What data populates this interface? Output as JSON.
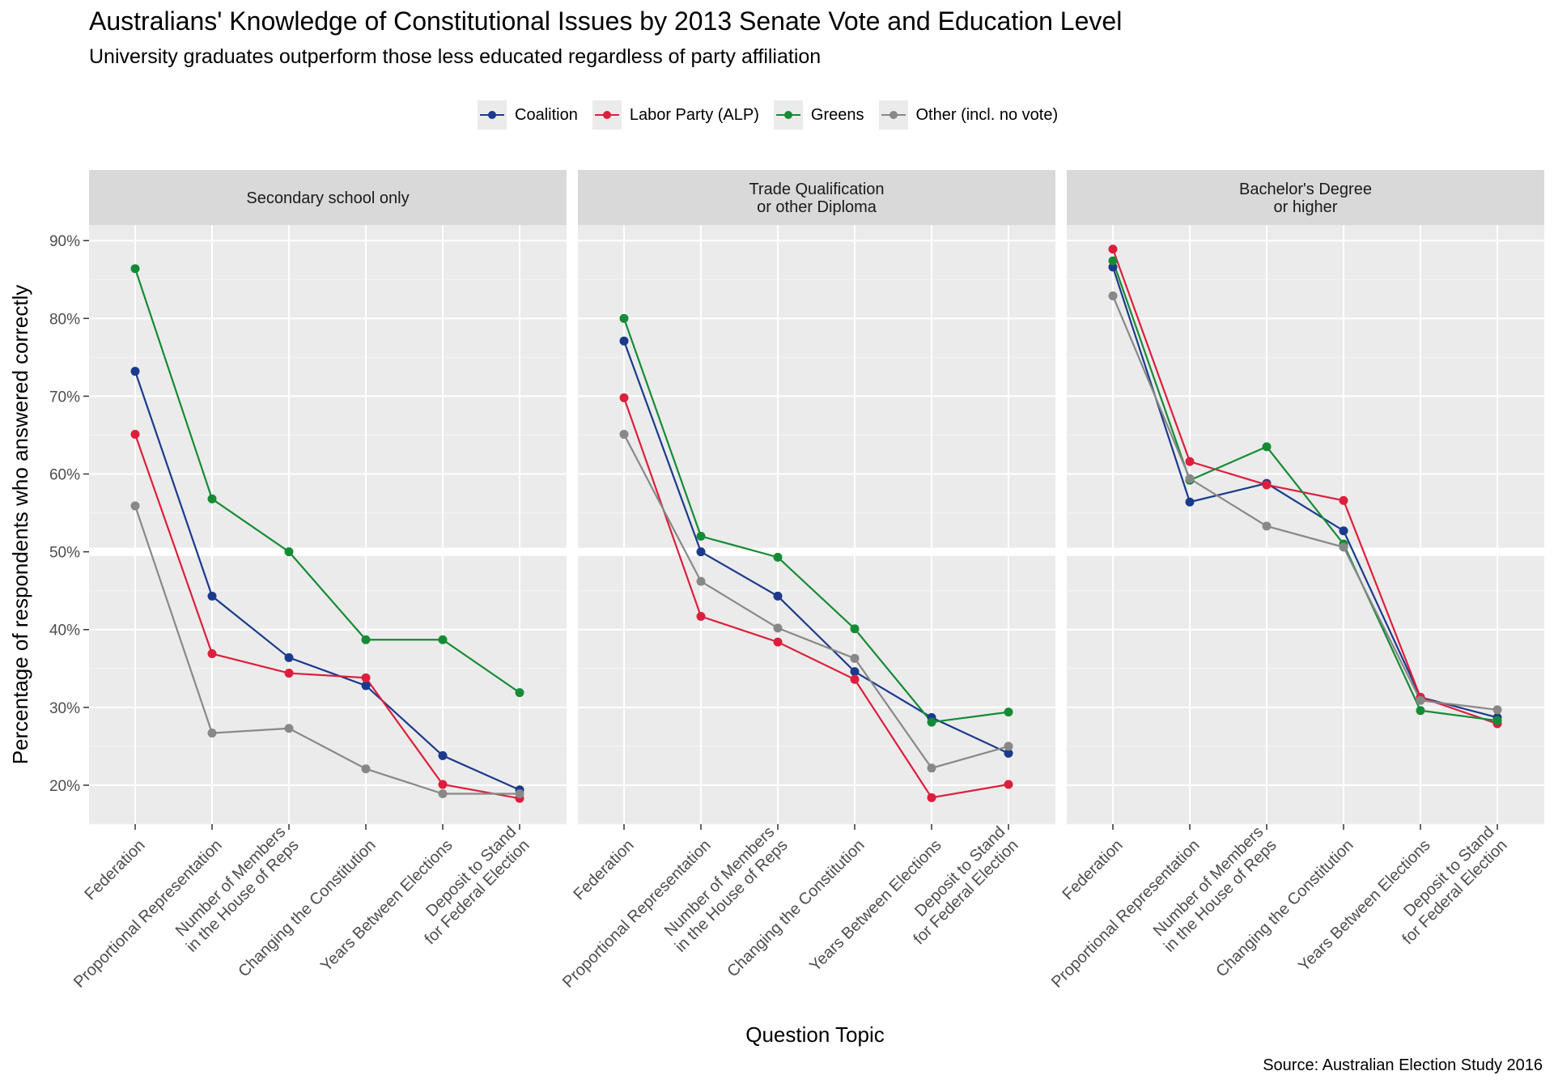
{
  "chart_data": {
    "type": "line",
    "title": "Australians' Knowledge of Constitutional Issues by 2013 Senate Vote and Education Level",
    "subtitle": "University graduates outperform those less educated regardless of party affiliation",
    "caption": "Source: Australian Election Study 2016",
    "xlabel": "Question Topic",
    "ylabel": "Percentage of respondents who answered correctly",
    "categories": [
      "Federation",
      "Proportional Representation",
      "Number of Members\nin the House of Reps",
      "Changing the Constitution",
      "Years Between Elections",
      "Deposit to Stand\nfor Federal Election"
    ],
    "ylim": [
      15,
      92
    ],
    "yticks": [
      20,
      30,
      40,
      50,
      60,
      70,
      80,
      90
    ],
    "ytick_labels": [
      "20%",
      "30%",
      "40%",
      "50%",
      "60%",
      "70%",
      "80%",
      "90%"
    ],
    "highlight_line": 50,
    "grid": true,
    "legend_position": "top",
    "legend": [
      {
        "name": "Coalition",
        "color": "#1b3a8c"
      },
      {
        "name": "Labor Party (ALP)",
        "color": "#dc1f3c"
      },
      {
        "name": "Greens",
        "color": "#168b35"
      },
      {
        "name": "Other (incl. no vote)",
        "color": "#888888"
      }
    ],
    "panels": [
      {
        "label": "Secondary school only",
        "series": [
          {
            "name": "Coalition",
            "values": [
              73.2,
              44.3,
              36.4,
              32.8,
              23.8,
              19.4
            ]
          },
          {
            "name": "Labor Party (ALP)",
            "values": [
              65.1,
              36.9,
              34.4,
              33.8,
              20.1,
              18.3
            ]
          },
          {
            "name": "Greens",
            "values": [
              86.4,
              56.8,
              50.0,
              38.7,
              38.7,
              31.9
            ]
          },
          {
            "name": "Other (incl. no vote)",
            "values": [
              55.9,
              26.7,
              27.3,
              22.1,
              18.9,
              18.9
            ]
          }
        ]
      },
      {
        "label": "Trade Qualification\nor other Diploma",
        "series": [
          {
            "name": "Coalition",
            "values": [
              77.1,
              50.0,
              44.3,
              34.6,
              28.7,
              24.1
            ]
          },
          {
            "name": "Labor Party (ALP)",
            "values": [
              69.8,
              41.7,
              38.4,
              33.6,
              18.4,
              20.1
            ]
          },
          {
            "name": "Greens",
            "values": [
              80.0,
              52.0,
              49.3,
              40.1,
              28.1,
              29.4
            ]
          },
          {
            "name": "Other (incl. no vote)",
            "values": [
              65.1,
              46.2,
              40.2,
              36.3,
              22.2,
              25.0
            ]
          }
        ]
      },
      {
        "label": "Bachelor's Degree\nor higher",
        "series": [
          {
            "name": "Coalition",
            "values": [
              86.6,
              56.4,
              58.8,
              52.7,
              31.3,
              28.7
            ]
          },
          {
            "name": "Labor Party (ALP)",
            "values": [
              88.9,
              61.6,
              58.6,
              56.6,
              31.3,
              27.9
            ]
          },
          {
            "name": "Greens",
            "values": [
              87.4,
              59.2,
              63.5,
              51.0,
              29.6,
              28.3
            ]
          },
          {
            "name": "Other (incl. no vote)",
            "values": [
              82.9,
              59.4,
              53.3,
              50.6,
              30.9,
              29.7
            ]
          }
        ]
      }
    ]
  }
}
